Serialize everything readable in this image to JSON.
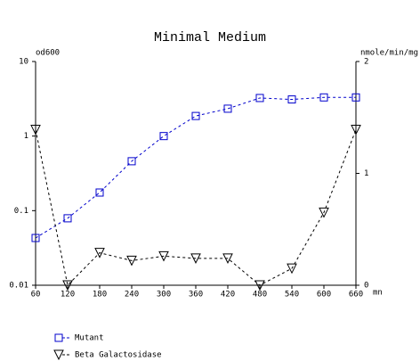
{
  "chart_data": {
    "type": "line",
    "title": "Minimal Medium",
    "x_label": "mn",
    "y_label": "od600",
    "y2_label": "nmole/min/mg",
    "x": [
      60,
      120,
      180,
      240,
      300,
      360,
      420,
      480,
      540,
      600,
      660
    ],
    "xlim": [
      60,
      660
    ],
    "xticks": [
      60,
      120,
      180,
      240,
      300,
      360,
      420,
      480,
      540,
      600,
      660
    ],
    "ylim": [
      0.01,
      10
    ],
    "yticks": [
      0.01,
      0.1,
      1,
      10
    ],
    "y_scale": "log",
    "y2lim": [
      0,
      2
    ],
    "y2ticks": [
      0,
      1,
      2
    ],
    "series": [
      {
        "name": "Mutant",
        "color": "#0000cc",
        "marker": "square",
        "values": [
          0.043,
          0.079,
          0.175,
          0.46,
          1.0,
          1.86,
          2.33,
          3.24,
          3.1,
          3.3,
          3.3
        ]
      },
      {
        "name": "Beta Galactosidase",
        "color": "#000000",
        "marker": "triangle-down",
        "axis": "y2",
        "values": [
          1.39,
          0,
          0.29,
          0.22,
          0.26,
          0.24,
          0.24,
          0,
          0.15,
          0.65,
          1.39
        ]
      }
    ],
    "legend": "bottom-left"
  }
}
